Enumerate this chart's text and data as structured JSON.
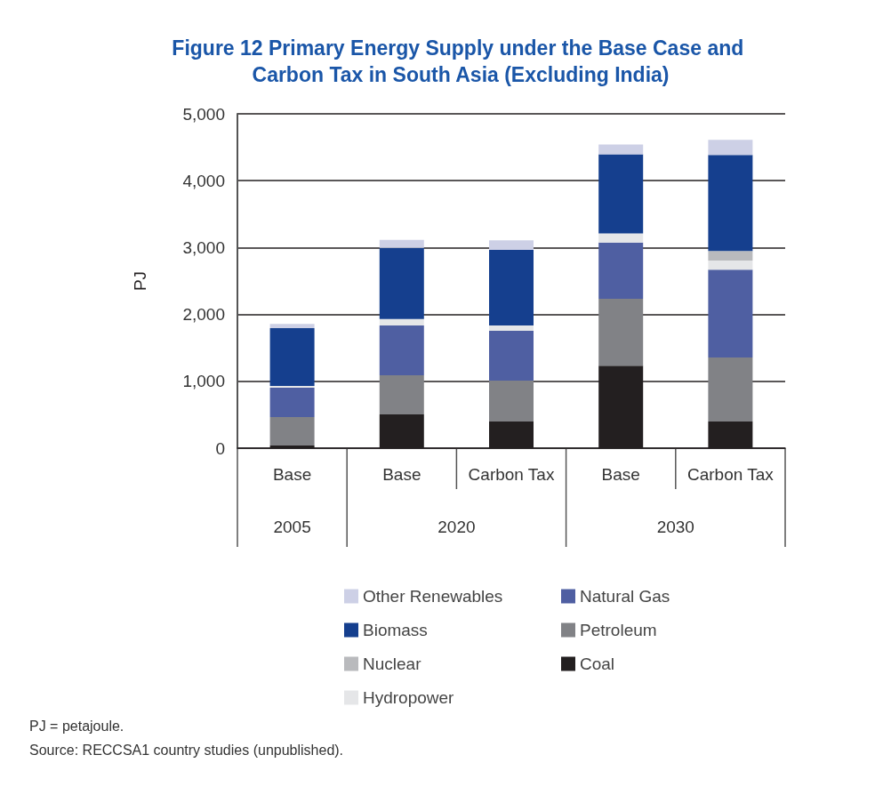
{
  "chart_data": {
    "type": "bar",
    "title": "Figure 12 Primary Energy Supply under the Base Case and Carbon Tax in South Asia (Excluding India)",
    "ylabel": "PJ",
    "categories": [
      "Base",
      "Base",
      "Carbon Tax",
      "Base",
      "Carbon Tax"
    ],
    "stacked": true,
    "series": [
      {
        "name": "Coal",
        "color": "#231f20",
        "values": [
          40,
          505,
          400,
          1235,
          400
        ]
      },
      {
        "name": "Petroleum",
        "color": "#818286",
        "values": [
          425,
          585,
          610,
          1000,
          955
        ]
      },
      {
        "name": "Natural Gas",
        "color": "#4f5fa2",
        "values": [
          440,
          745,
          745,
          840,
          1315
        ]
      },
      {
        "name": "Hydropower",
        "color": "#e5e6e8",
        "values": [
          25,
          95,
          80,
          135,
          135
        ]
      },
      {
        "name": "Nuclear",
        "color": "#b9babd",
        "values": [
          0,
          0,
          0,
          0,
          145
        ]
      },
      {
        "name": "Biomass",
        "color": "#153f8e",
        "values": [
          865,
          1065,
          1130,
          1185,
          1435
        ]
      },
      {
        "name": "Other Renewables",
        "color": "#cdd0e6",
        "values": [
          65,
          120,
          145,
          145,
          225
        ]
      }
    ],
    "ylim": [
      0,
      5000
    ],
    "yticks": [
      {
        "value": 0,
        "label": "0"
      },
      {
        "value": 1000,
        "label": "1,000"
      },
      {
        "value": 2000,
        "label": "2,000"
      },
      {
        "value": 3000,
        "label": "3,000"
      },
      {
        "value": 4000,
        "label": "4,000"
      },
      {
        "value": 5000,
        "label": "5,000"
      }
    ],
    "grid": "y",
    "legend": "bottom",
    "annotations": [
      "2005",
      "2020",
      "2030",
      "PJ = petajoule.",
      "Source: RECCSA1 country studies (unpublished)."
    ]
  }
}
